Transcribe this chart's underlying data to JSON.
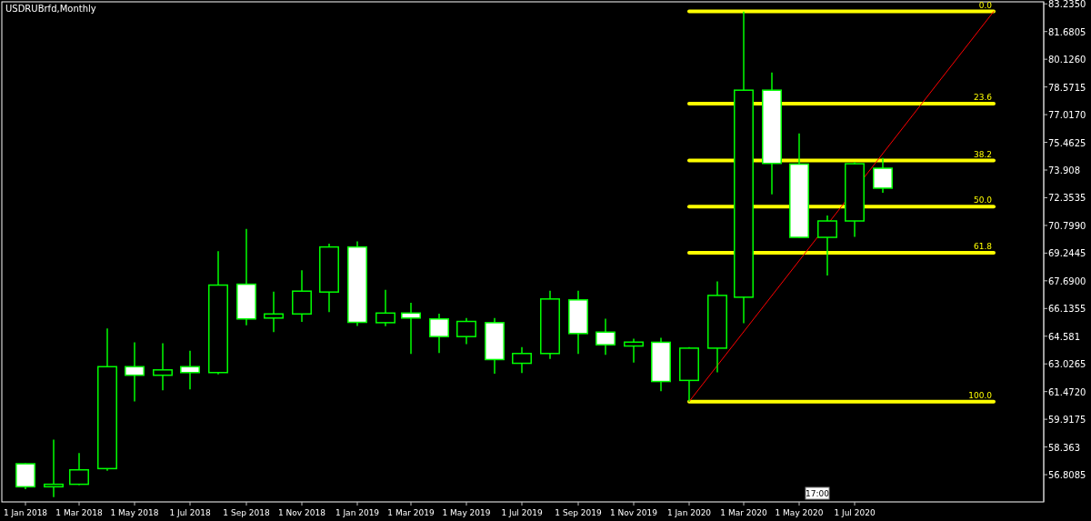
{
  "chart_data": {
    "type": "candlestick",
    "title": "USDRUBrfd,Monthly",
    "color": "#00ff00",
    "x": [
      "2018-01",
      "2018-02",
      "2018-03",
      "2018-04",
      "2018-05",
      "2018-06",
      "2018-07",
      "2018-08",
      "2018-09",
      "2018-10",
      "2018-11",
      "2018-12",
      "2019-01",
      "2019-02",
      "2019-03",
      "2019-04",
      "2019-05",
      "2019-06",
      "2019-07",
      "2019-08",
      "2019-09",
      "2019-10",
      "2019-11",
      "2019-12",
      "2020-01",
      "2020-02",
      "2020-03",
      "2020-04",
      "2020-05",
      "2020-06",
      "2020-07",
      "2020-08"
    ],
    "ohlc": [
      [
        57.42,
        57.45,
        56.0,
        56.13
      ],
      [
        56.13,
        58.77,
        55.55,
        56.27
      ],
      [
        56.27,
        58.02,
        56.22,
        57.08
      ],
      [
        57.15,
        65.02,
        57.03,
        62.87
      ],
      [
        62.87,
        64.24,
        60.92,
        62.39
      ],
      [
        62.39,
        64.19,
        61.55,
        62.69
      ],
      [
        62.87,
        63.76,
        61.6,
        62.54
      ],
      [
        62.54,
        69.35,
        62.44,
        67.45
      ],
      [
        67.5,
        70.61,
        65.19,
        65.55
      ],
      [
        65.6,
        67.08,
        64.81,
        65.83
      ],
      [
        65.83,
        68.28,
        65.39,
        67.11
      ],
      [
        67.06,
        69.78,
        65.93,
        69.59
      ],
      [
        69.59,
        69.9,
        65.15,
        65.36
      ],
      [
        65.34,
        67.18,
        65.14,
        65.88
      ],
      [
        65.88,
        66.46,
        63.59,
        65.6
      ],
      [
        65.55,
        65.85,
        63.64,
        64.56
      ],
      [
        64.56,
        65.6,
        64.13,
        65.41
      ],
      [
        65.34,
        65.6,
        62.47,
        63.27
      ],
      [
        63.06,
        63.97,
        62.52,
        63.61
      ],
      [
        63.61,
        67.13,
        63.3,
        66.67
      ],
      [
        66.62,
        67.13,
        63.59,
        64.73
      ],
      [
        64.81,
        65.56,
        63.54,
        64.1
      ],
      [
        64.03,
        64.44,
        63.1,
        64.25
      ],
      [
        64.24,
        64.49,
        61.5,
        62.04
      ],
      [
        62.1,
        63.97,
        60.92,
        63.91
      ],
      [
        63.91,
        67.65,
        62.55,
        66.87
      ],
      [
        66.77,
        82.8,
        65.31,
        78.39
      ],
      [
        78.39,
        79.38,
        72.54,
        74.28
      ],
      [
        74.24,
        75.96,
        70.1,
        70.13
      ],
      [
        70.13,
        71.36,
        67.99,
        71.05
      ],
      [
        71.05,
        74.35,
        70.16,
        74.26
      ],
      [
        74.01,
        74.58,
        72.63,
        72.89
      ]
    ],
    "series": [
      {
        "type": "line",
        "color": "#ffff00",
        "x": [
          "2020-01",
          "2020-12"
        ],
        "values": [
          82.81,
          82.81
        ]
      },
      {
        "type": "line",
        "color": "#ffff00",
        "x": [
          "2020-01",
          "2020-12"
        ],
        "values": [
          77.64,
          77.64
        ]
      },
      {
        "type": "line",
        "color": "#ffff00",
        "x": [
          "2020-01",
          "2020-12"
        ],
        "values": [
          74.44,
          74.44
        ]
      },
      {
        "type": "line",
        "color": "#ffff00",
        "x": [
          "2020-01",
          "2020-12"
        ],
        "values": [
          71.86,
          71.86
        ]
      },
      {
        "type": "line",
        "color": "#ffff00",
        "x": [
          "2020-01",
          "2020-12"
        ],
        "values": [
          69.27,
          69.27
        ]
      },
      {
        "type": "line",
        "color": "#ffff00",
        "x": [
          "2020-01",
          "2020-12"
        ],
        "values": [
          60.91,
          60.91
        ]
      },
      {
        "type": "line",
        "color": "#ff0000",
        "x": [
          "2020-01",
          "2020-12"
        ],
        "values": [
          60.91,
          82.81
        ]
      }
    ],
    "annotations": [
      {
        "text": "0.0",
        "x": "2020-12",
        "y": 82.81
      },
      {
        "text": "23.6",
        "x": "2020-12",
        "y": 77.64
      },
      {
        "text": "38.2",
        "x": "2020-12",
        "y": 74.44
      },
      {
        "text": "50.0",
        "x": "2020-12",
        "y": 71.86
      },
      {
        "text": "61.8",
        "x": "2020-12",
        "y": 69.27
      },
      {
        "text": "100.0",
        "x": "2020-12",
        "y": 60.91
      },
      "17:00"
    ],
    "xlim": [
      "2017-12-06",
      "2021-01-25"
    ],
    "xticks": [
      {
        "value": "2018-01",
        "label": "1 Jan 2018"
      },
      {
        "value": "2018-03",
        "label": "1 Mar 2018"
      },
      {
        "value": "2018-05",
        "label": "1 May 2018"
      },
      {
        "value": "2018-07",
        "label": "1 Jul 2018"
      },
      {
        "value": "2018-09",
        "label": "1 Sep 2018"
      },
      {
        "value": "2018-11",
        "label": "1 Nov 2018"
      },
      {
        "value": "2019-01",
        "label": "1 Jan 2019"
      },
      {
        "value": "2019-03",
        "label": "1 Mar 2019"
      },
      {
        "value": "2019-05",
        "label": "1 May 2019"
      },
      {
        "value": "2019-07",
        "label": "1 Jul 2019"
      },
      {
        "value": "2019-09",
        "label": "1 Sep 2019"
      },
      {
        "value": "2019-11",
        "label": "1 Nov 2019"
      },
      {
        "value": "2020-01",
        "label": "1 Jan 2020"
      },
      {
        "value": "2020-03",
        "label": "1 Mar 2020"
      },
      {
        "value": "2020-05",
        "label": "1 May 2020"
      },
      {
        "value": "2020-07",
        "label": "1 Jul 2020"
      }
    ],
    "ylim": [
      55.28,
      83.35
    ],
    "yticks": [
      56.8085,
      58.363,
      59.9175,
      {
        "value": 61.472,
        "label": "61.4720"
      },
      63.0265,
      64.581,
      66.1355,
      {
        "value": 67.69,
        "label": "67.6900"
      },
      69.2445,
      {
        "value": 70.799,
        "label": "70.7990"
      },
      72.3535,
      73.908,
      75.4625,
      {
        "value": 77.017,
        "label": "77.0170"
      },
      78.5715,
      {
        "value": 80.126,
        "label": "80.1260"
      },
      81.6805,
      {
        "value": 83.235,
        "label": "83.2350"
      }
    ]
  }
}
